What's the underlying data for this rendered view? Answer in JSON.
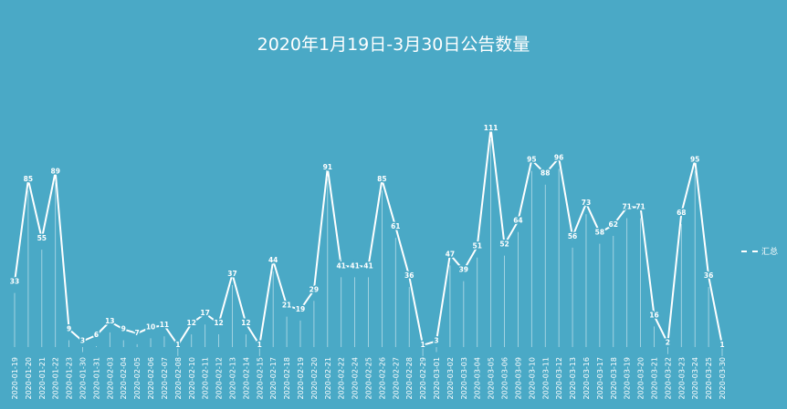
{
  "chart_data": {
    "type": "line",
    "title": "2020年1月19日-3月30日公告数量",
    "legend": {
      "position": "right",
      "label": "汇总"
    },
    "colors": {
      "background": "#4aa9c6",
      "line": "#ffffff"
    },
    "categories": [
      "2020-01-19",
      "2020-01-20",
      "2020-01-21",
      "2020-01-22",
      "2020-01-23",
      "2020-01-30",
      "2020-01-31",
      "2020-02-03",
      "2020-02-04",
      "2020-02-05",
      "2020-02-06",
      "2020-02-07",
      "2020-02-08",
      "2020-02-10",
      "2020-02-11",
      "2020-02-12",
      "2020-02-13",
      "2020-02-14",
      "2020-02-15",
      "2020-02-17",
      "2020-02-18",
      "2020-02-19",
      "2020-02-20",
      "2020-02-21",
      "2020-02-22",
      "2020-02-24",
      "2020-02-25",
      "2020-02-26",
      "2020-02-27",
      "2020-02-28",
      "2020-02-29",
      "2020-03-01",
      "2020-03-02",
      "2020-03-03",
      "2020-03-04",
      "2020-03-05",
      "2020-03-06",
      "2020-03-09",
      "2020-03-10",
      "2020-03-11",
      "2020-03-12",
      "2020-03-13",
      "2020-03-16",
      "2020-03-17",
      "2020-03-18",
      "2020-03-19",
      "2020-03-20",
      "2020-03-21",
      "2020-03-22",
      "2020-03-23",
      "2020-03-24",
      "2020-03-25",
      "2020-03-30"
    ],
    "series": [
      {
        "name": "汇总",
        "values": [
          33,
          85,
          55,
          89,
          9,
          3,
          6,
          13,
          9,
          7,
          10,
          11,
          1,
          12,
          17,
          12,
          37,
          12,
          1,
          44,
          21,
          19,
          29,
          91,
          41,
          41,
          41,
          85,
          61,
          36,
          1,
          3,
          47,
          39,
          51,
          111,
          52,
          64,
          95,
          88,
          96,
          56,
          73,
          58,
          62,
          71,
          71,
          16,
          2,
          68,
          95,
          36,
          1
        ]
      }
    ],
    "ylim": [
      0,
      111
    ],
    "grid": false
  }
}
